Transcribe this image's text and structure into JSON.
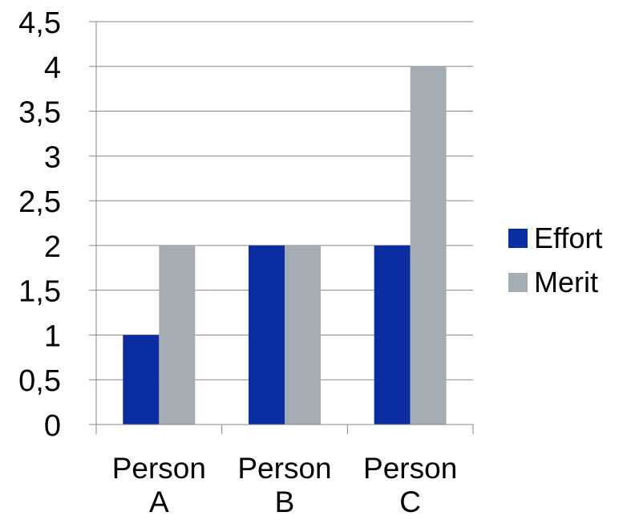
{
  "chart_data": {
    "type": "bar",
    "categories": [
      "Person A",
      "Person B",
      "Person C"
    ],
    "category_label_lines": [
      [
        "Person",
        "A"
      ],
      [
        "Person",
        "B"
      ],
      [
        "Person",
        "C"
      ]
    ],
    "series": [
      {
        "name": "Effort",
        "values": [
          1,
          2,
          2
        ],
        "color": "#0A2DA2"
      },
      {
        "name": "Merit",
        "values": [
          2,
          2,
          4
        ],
        "color": "#A4ACB4"
      }
    ],
    "ylim": [
      0,
      4.5
    ],
    "yticks": [
      "0",
      "0,5",
      "1",
      "1,5",
      "2",
      "2,5",
      "3",
      "3,5",
      "4",
      "4,5"
    ],
    "grid": true,
    "legend": "right",
    "title": "",
    "xlabel": "",
    "ylabel": ""
  }
}
